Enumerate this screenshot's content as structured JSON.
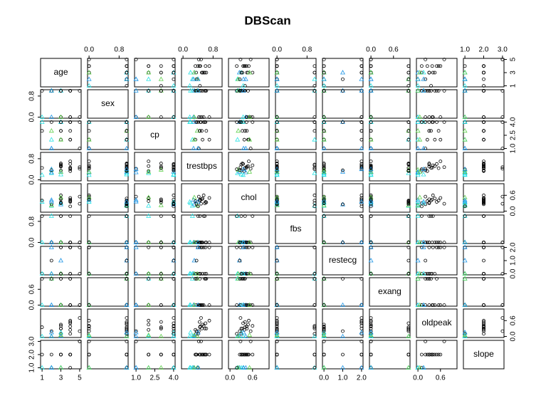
{
  "chart_data": {
    "type": "scatter-matrix",
    "title": "DBScan",
    "colors": [
      "#000000",
      "#28e2e5",
      "#2297e6",
      "#61d04f"
    ],
    "symbols": [
      "circle",
      "triangle",
      "triangle",
      "triangle"
    ],
    "cluster": [
      0,
      0,
      1,
      0,
      0,
      2,
      0,
      0,
      1,
      3,
      0,
      0,
      0,
      2,
      0,
      0,
      0,
      1,
      0,
      0,
      3,
      0,
      2,
      0
    ],
    "variables": [
      {
        "name": "age",
        "lim": [
          1,
          5
        ],
        "ticks": [
          1,
          3,
          5
        ],
        "values": [
          3,
          3,
          2,
          4,
          5,
          3,
          1,
          4,
          3,
          2,
          3,
          4,
          5,
          2,
          3,
          4,
          3,
          1,
          2,
          4,
          3,
          3,
          2,
          4
        ]
      },
      {
        "name": "sex",
        "lim": [
          0,
          1
        ],
        "ticks": [
          {
            "value": 0,
            "label": "0.0"
          },
          {
            "value": 0.8,
            "label": "0.8"
          }
        ],
        "values": [
          1,
          0,
          1,
          1,
          0,
          1,
          1,
          0,
          1,
          1,
          0,
          1,
          1,
          0,
          1,
          1,
          1,
          0,
          1,
          1,
          0,
          1,
          1,
          0
        ]
      },
      {
        "name": "cp",
        "lim": [
          1,
          4
        ],
        "ticks": [
          {
            "value": 1,
            "label": "1.0"
          },
          {
            "value": 2.5,
            "label": "2.5"
          },
          {
            "value": 4,
            "label": "4.0"
          }
        ],
        "values": [
          4,
          3,
          2,
          4,
          1,
          4,
          3,
          2,
          4,
          3,
          4,
          2,
          4,
          1,
          3,
          4,
          2,
          4,
          4,
          3,
          2,
          4,
          1,
          4
        ]
      },
      {
        "name": "trestbps",
        "lim": [
          0,
          1
        ],
        "ticks": [
          {
            "value": 0,
            "label": "0.0"
          },
          {
            "value": 0.8,
            "label": "0.8"
          }
        ],
        "values": [
          0.35,
          0.5,
          0.25,
          0.6,
          0.42,
          0.3,
          0.45,
          0.7,
          0.2,
          0.38,
          0.55,
          0.33,
          0.48,
          0.28,
          0.62,
          0.4,
          0.52,
          0.18,
          0.36,
          0.44,
          0.3,
          0.58,
          0.4,
          0.46
        ]
      },
      {
        "name": "chol",
        "lim": [
          0,
          1
        ],
        "ticks": [
          {
            "value": 0,
            "label": "0.0"
          },
          {
            "value": 0.6,
            "label": "0.6"
          }
        ],
        "values": [
          0.3,
          0.45,
          0.2,
          0.35,
          0.55,
          0.25,
          0.4,
          0.5,
          0.3,
          0.22,
          0.6,
          0.38,
          0.28,
          0.42,
          0.33,
          0.18,
          0.48,
          0.35,
          0.26,
          0.4,
          0.52,
          0.3,
          0.36,
          0.44
        ]
      },
      {
        "name": "fbs",
        "lim": [
          0,
          1
        ],
        "ticks": [
          {
            "value": 0,
            "label": "0.0"
          },
          {
            "value": 0.8,
            "label": "0.8"
          }
        ],
        "values": [
          0,
          0,
          1,
          0,
          0,
          0,
          1,
          0,
          0,
          0,
          1,
          0,
          0,
          0,
          0,
          1,
          0,
          0,
          0,
          0,
          0,
          1,
          0,
          0
        ]
      },
      {
        "name": "restecg",
        "lim": [
          0,
          2
        ],
        "ticks": [
          {
            "value": 0,
            "label": "0.0"
          },
          {
            "value": 1,
            "label": "1.0"
          },
          {
            "value": 2,
            "label": "2.0"
          }
        ],
        "values": [
          0,
          2,
          0,
          2,
          0,
          1,
          0,
          2,
          0,
          0,
          2,
          0,
          2,
          0,
          0,
          2,
          0,
          0,
          1,
          2,
          0,
          0,
          2,
          0
        ]
      },
      {
        "name": "exang",
        "lim": [
          0,
          1
        ],
        "ticks": [
          {
            "value": 0,
            "label": "0.0"
          },
          {
            "value": 0.6,
            "label": "0.6"
          }
        ],
        "values": [
          0,
          0,
          1,
          1,
          0,
          0,
          1,
          0,
          0,
          1,
          0,
          1,
          0,
          0,
          1,
          0,
          0,
          0,
          1,
          0,
          0,
          1,
          0,
          0
        ]
      },
      {
        "name": "oldpeak",
        "lim": [
          0,
          1
        ],
        "ticks": [
          {
            "value": 0,
            "label": "0.0"
          },
          {
            "value": 0.6,
            "label": "0.6"
          }
        ],
        "values": [
          0.1,
          0.3,
          0,
          0.5,
          0.2,
          0,
          0.35,
          0.6,
          0.15,
          0,
          0.4,
          0.25,
          0.7,
          0,
          0.3,
          0.1,
          0.45,
          0,
          0.2,
          0.55,
          0.05,
          0.3,
          0.15,
          0.38
        ]
      },
      {
        "name": "slope",
        "lim": [
          1,
          3
        ],
        "ticks": [
          {
            "value": 1,
            "label": "1.0"
          },
          {
            "value": 2,
            "label": "2.0"
          },
          {
            "value": 3,
            "label": "3.0"
          }
        ],
        "values": [
          2,
          2,
          1,
          2,
          3,
          1,
          2,
          2,
          1,
          1,
          2,
          2,
          3,
          1,
          2,
          1,
          2,
          1,
          2,
          2,
          1,
          2,
          1,
          2
        ]
      }
    ]
  }
}
